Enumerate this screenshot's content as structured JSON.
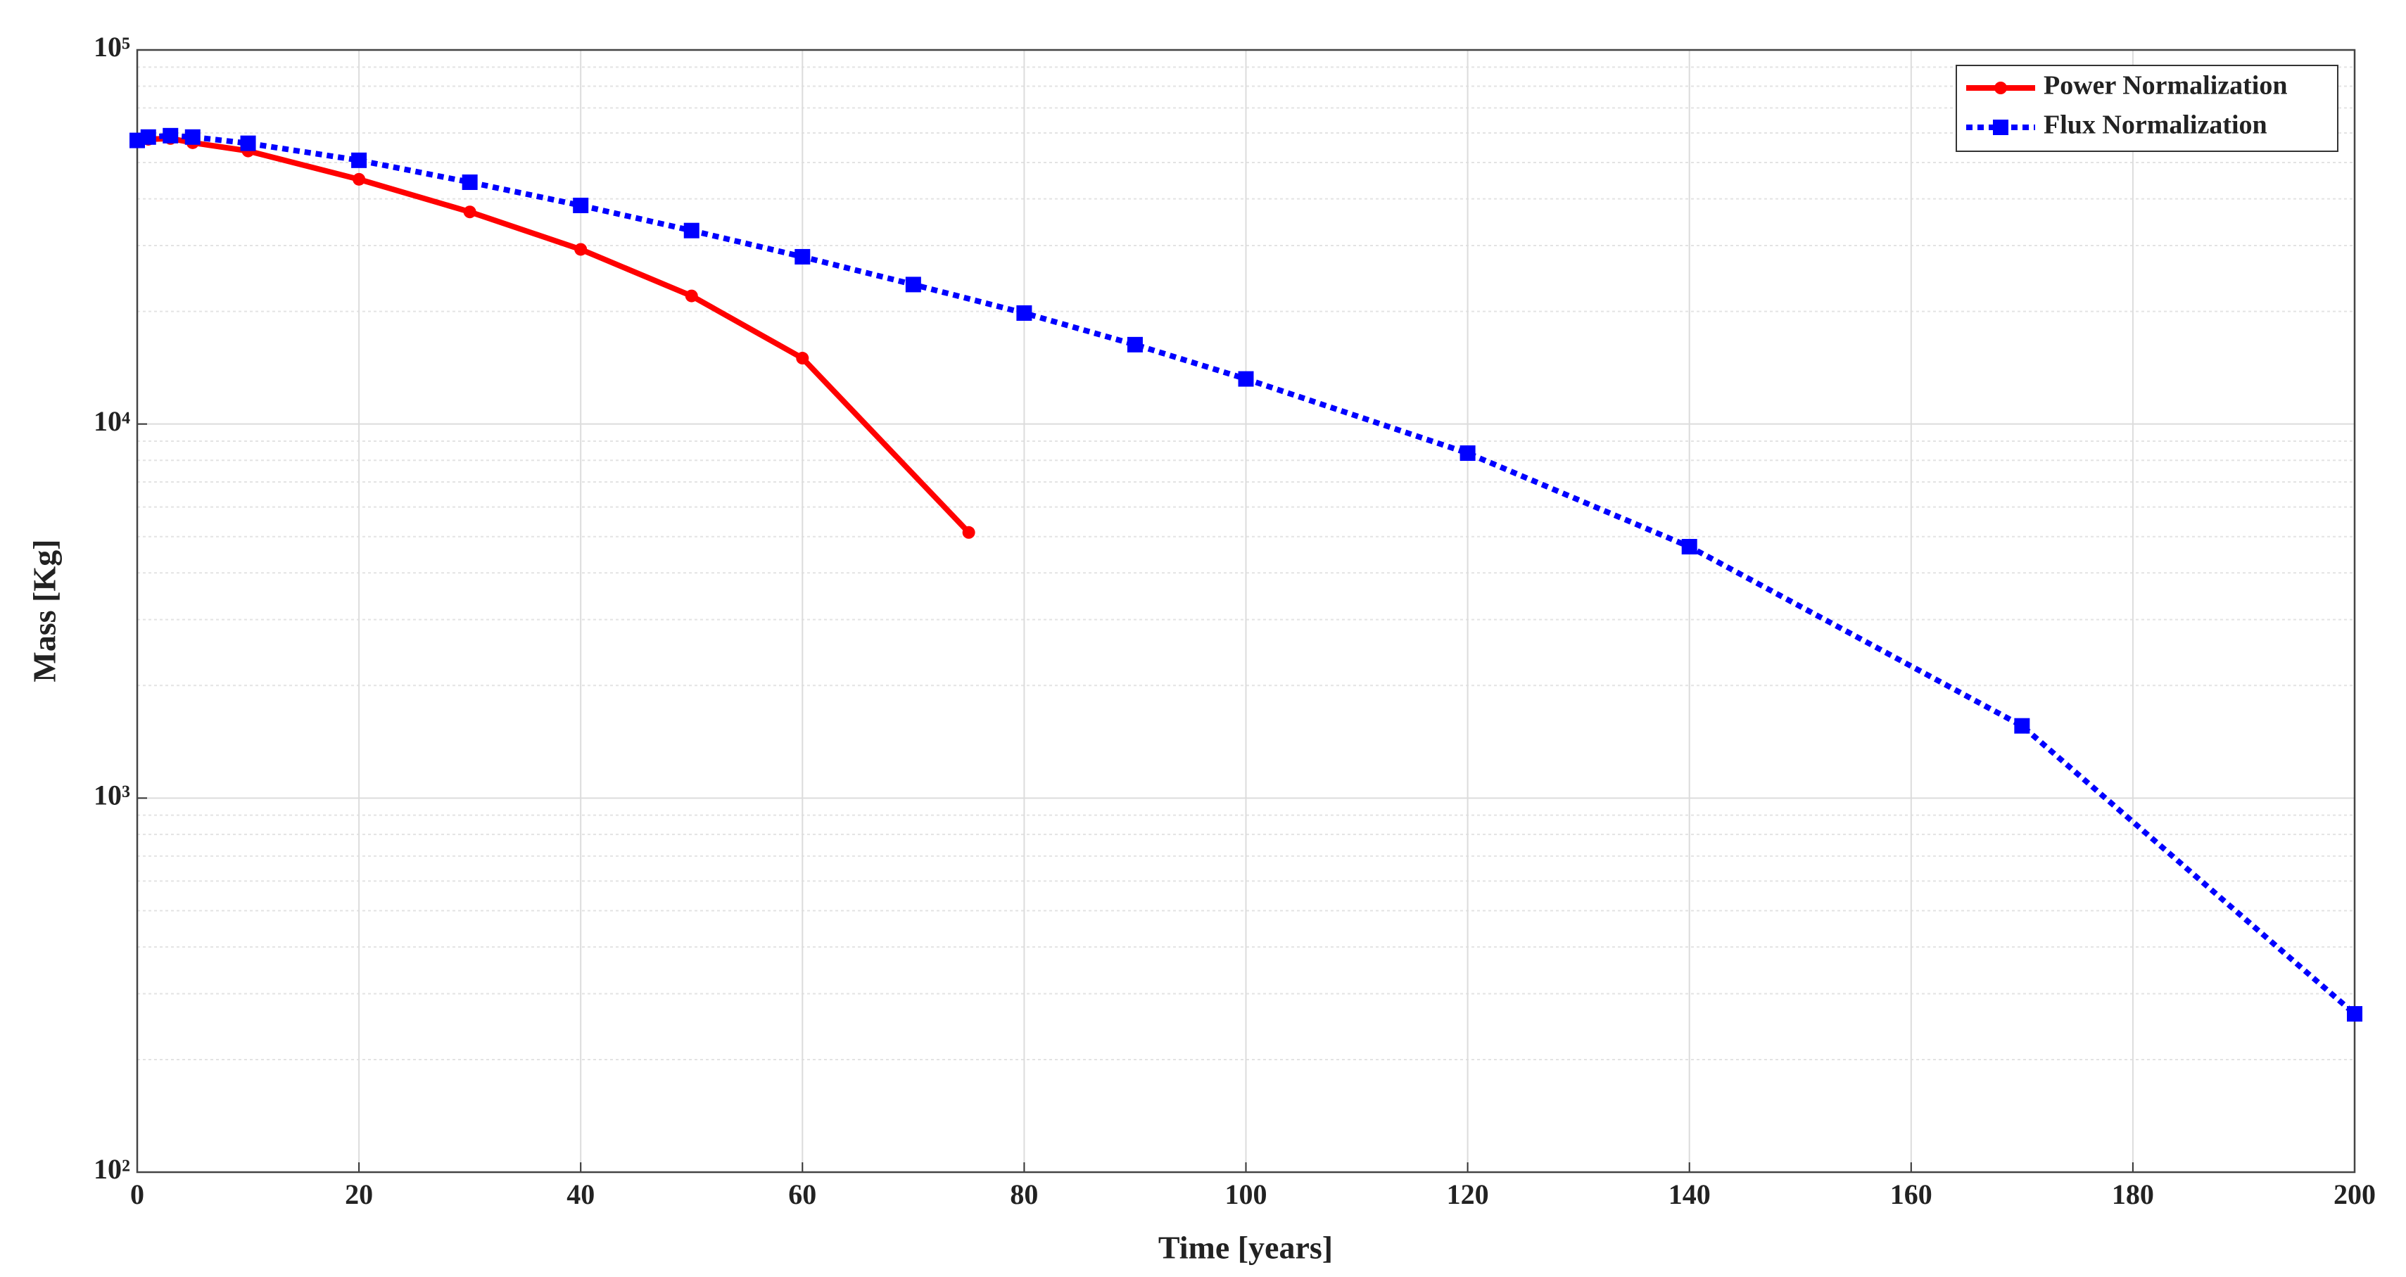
{
  "chart_data": {
    "type": "line",
    "x_label": "Time [years]",
    "y_label": "Mass [Kg]",
    "log_y": true,
    "grid": true,
    "minor_grid": true,
    "legend_position": "upper right",
    "xlim": [
      0,
      200
    ],
    "xticks": [
      0,
      20,
      40,
      60,
      80,
      100,
      120,
      140,
      160,
      180,
      200
    ],
    "ylim": [
      100,
      100000
    ],
    "yticks": [
      {
        "value": 100,
        "label": "10²"
      },
      {
        "value": 1000,
        "label": "10³"
      },
      {
        "value": 10000,
        "label": "10⁴"
      },
      {
        "value": 100000,
        "label": "10⁵"
      }
    ],
    "series": [
      {
        "name": "Power Normalization",
        "color": "#ff0000",
        "marker": "circle",
        "line_style": "solid",
        "x": [
          0,
          1,
          3,
          5,
          10,
          20,
          30,
          40,
          50,
          60,
          75
        ],
        "values": [
          56800,
          57700,
          58000,
          56500,
          53700,
          45100,
          36900,
          29300,
          22000,
          15000,
          5130
        ]
      },
      {
        "name": "Flux Normalization",
        "color": "#0000ff",
        "marker": "square",
        "line_style": "dotted",
        "x": [
          0,
          1,
          3,
          5,
          10,
          20,
          30,
          40,
          50,
          60,
          70,
          80,
          90,
          100,
          120,
          140,
          170,
          200
        ],
        "values": [
          57300,
          58500,
          59000,
          58500,
          56300,
          50700,
          44300,
          38400,
          32900,
          28000,
          23600,
          19800,
          16300,
          13200,
          8360,
          4700,
          1560,
          265
        ]
      }
    ]
  }
}
